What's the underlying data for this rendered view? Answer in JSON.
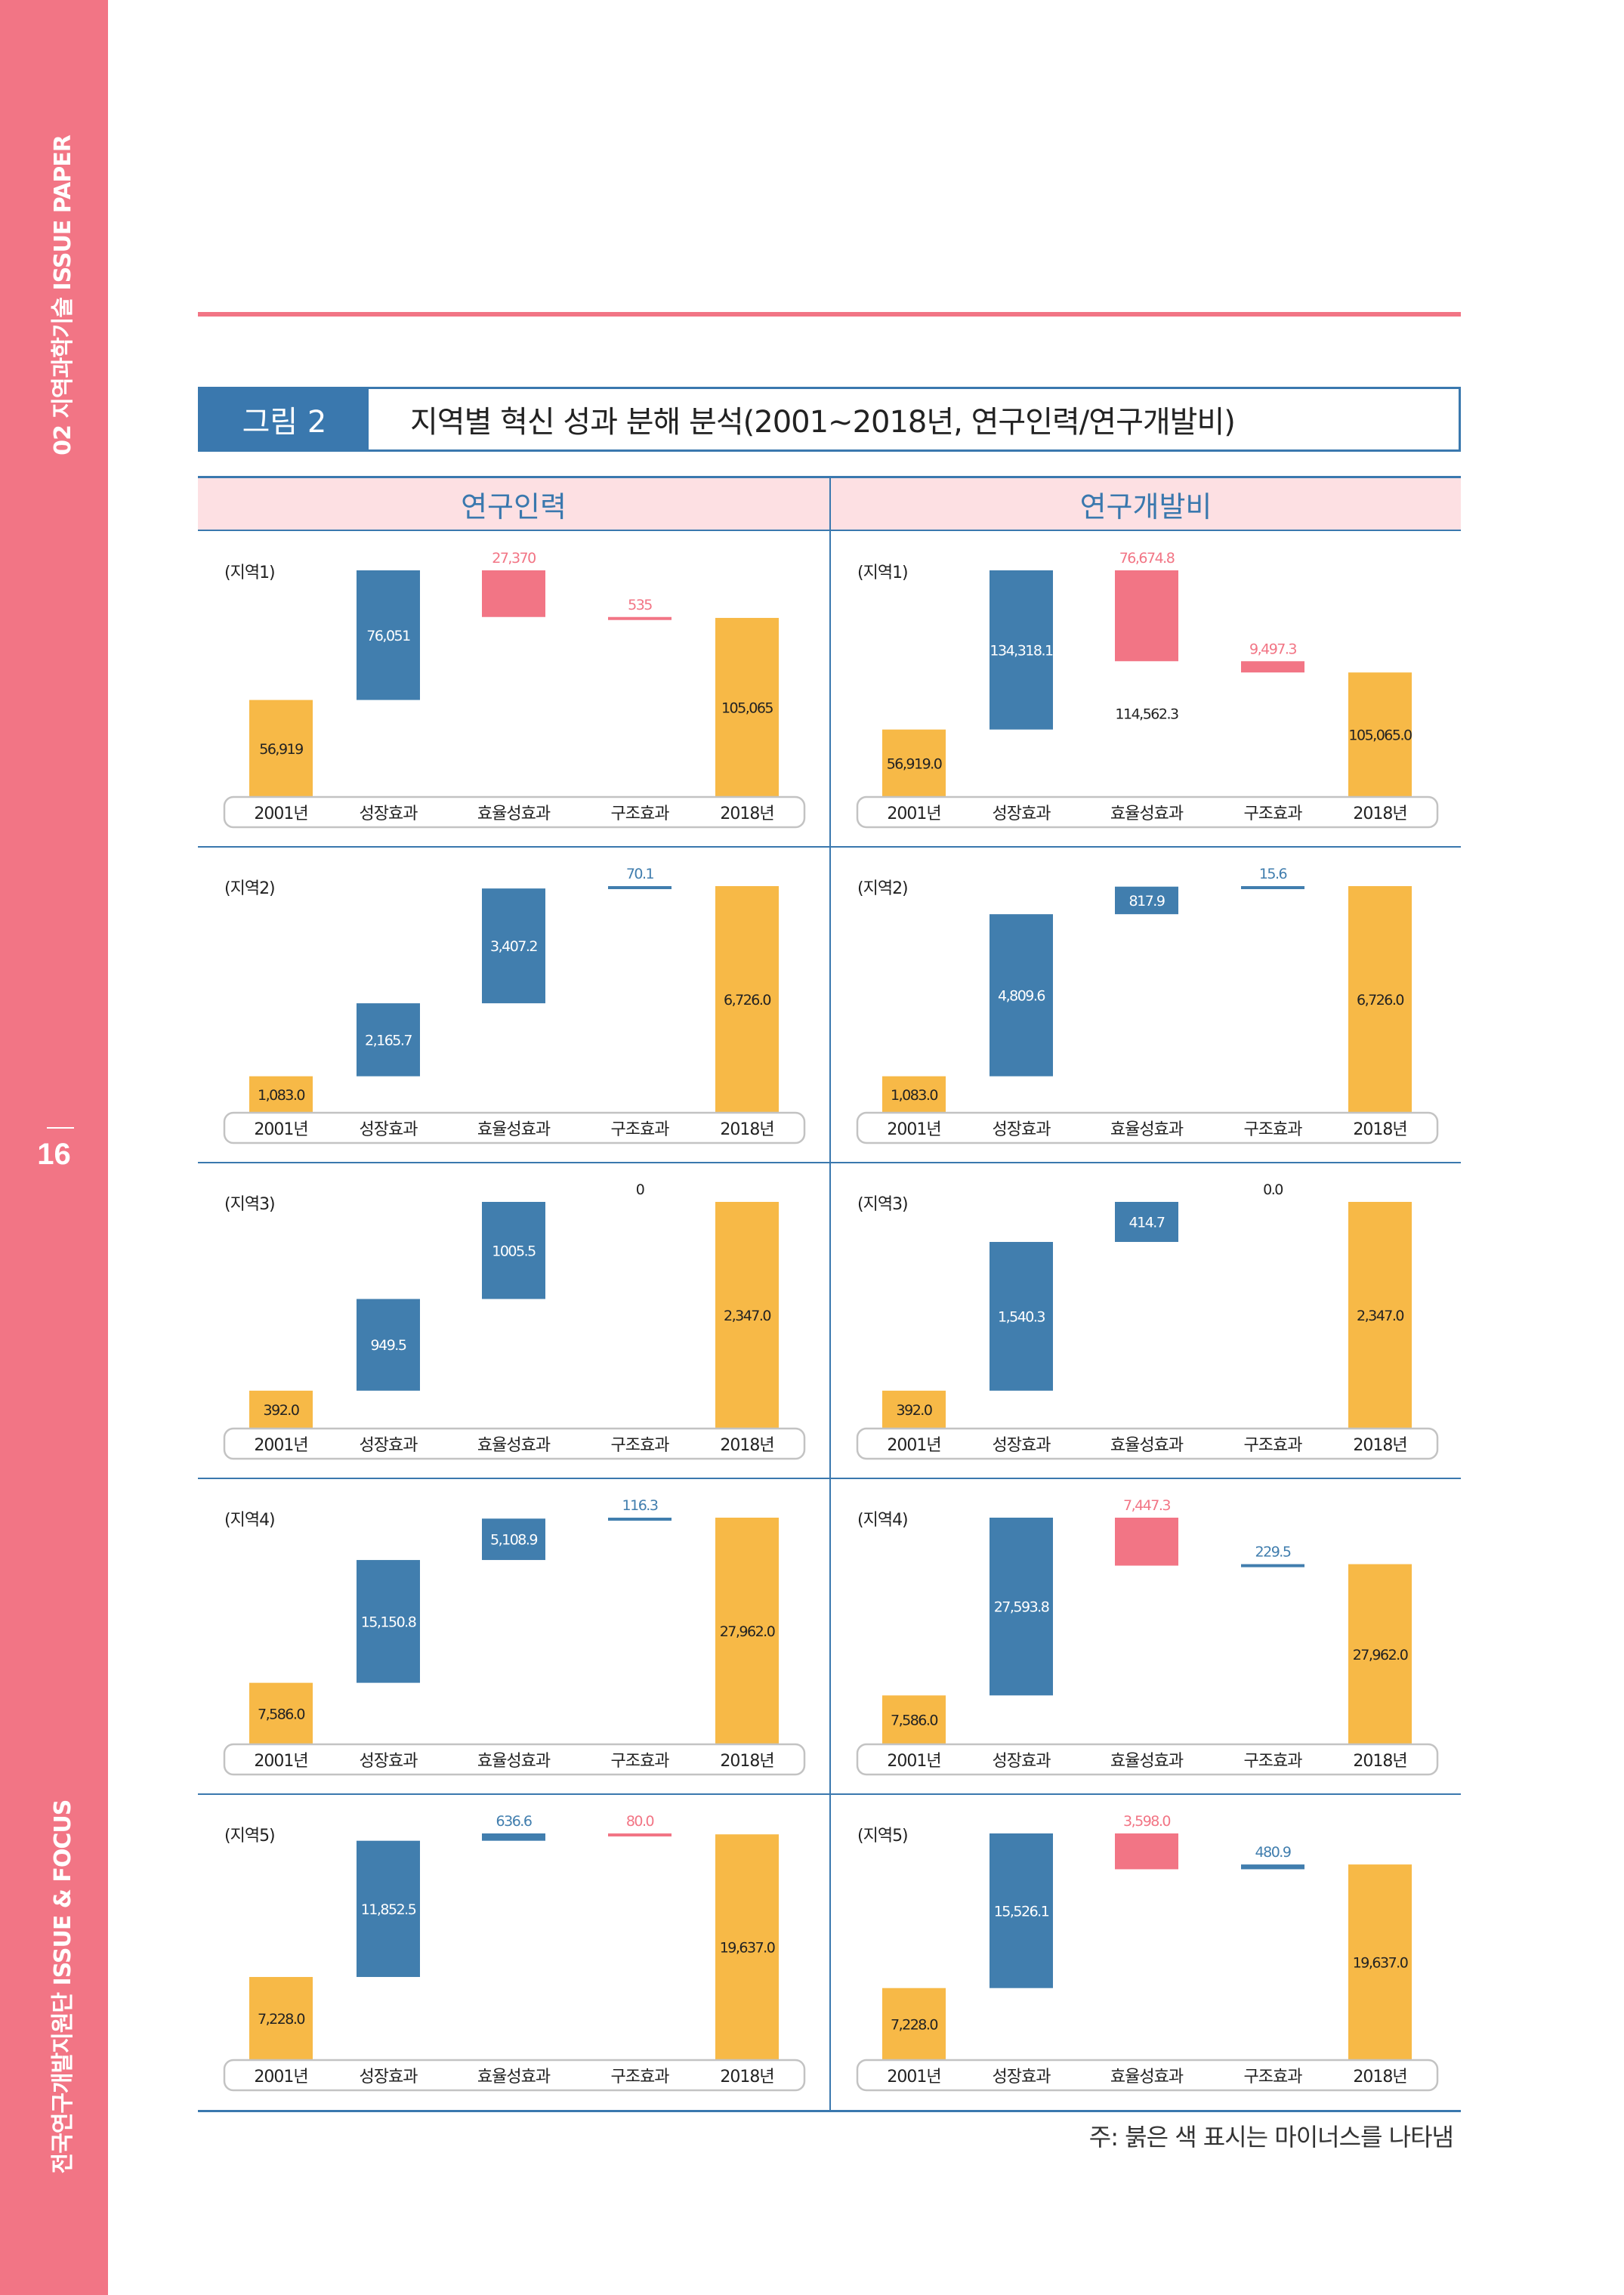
{
  "sidebar": {
    "top_text": "02 지역과학기술 ISSUE PAPER",
    "page_number": "16",
    "bottom_text": "전국연구개발지원단 ISSUE & FOCUS"
  },
  "figure": {
    "label": "그림 2",
    "title": "지역별 혁신 성과 분해 분석(2001~2018년, 연구인력/연구개발비)"
  },
  "columns": [
    "연구인력",
    "연구개발비"
  ],
  "footnote": "주: 붉은 색 표시는 마이너스를 나타냄",
  "colors": {
    "base": "#f7b947",
    "positive": "#417eae",
    "negative": "#f27585",
    "accent": "#3a78ae"
  },
  "chart_data": [
    {
      "type": "waterfall",
      "panel": "연구인력",
      "region": "(지역1)",
      "categories": [
        "2001년",
        "성장효과",
        "효율성효과",
        "구조효과",
        "2018년"
      ],
      "values": [
        56919,
        76051,
        -27370,
        -535,
        105065
      ],
      "labels": [
        "56,919",
        "76,051",
        "27,370",
        "535",
        "105,065"
      ]
    },
    {
      "type": "waterfall",
      "panel": "연구개발비",
      "region": "(지역1)",
      "categories": [
        "2001년",
        "성장효과",
        "효율성효과",
        "구조효과",
        "2018년"
      ],
      "values": [
        56919.0,
        134318.1,
        -76674.8,
        -9497.3,
        105065.0
      ],
      "labels": [
        "56,919.0",
        "134,318.1",
        "76,674.8",
        "9,497.3",
        "105,065.0"
      ],
      "subtotal_label": "114,562.3"
    },
    {
      "type": "waterfall",
      "panel": "연구인력",
      "region": "(지역2)",
      "categories": [
        "2001년",
        "성장효과",
        "효율성효과",
        "구조효과",
        "2018년"
      ],
      "values": [
        1083.0,
        2165.7,
        3407.2,
        70.1,
        6726.0
      ],
      "labels": [
        "1,083.0",
        "2,165.7",
        "3,407.2",
        "70.1",
        "6,726.0"
      ]
    },
    {
      "type": "waterfall",
      "panel": "연구개발비",
      "region": "(지역2)",
      "categories": [
        "2001년",
        "성장효과",
        "효율성효과",
        "구조효과",
        "2018년"
      ],
      "values": [
        1083.0,
        4809.6,
        817.9,
        15.6,
        6726.0
      ],
      "labels": [
        "1,083.0",
        "4,809.6",
        "817.9",
        "15.6",
        "6,726.0"
      ]
    },
    {
      "type": "waterfall",
      "panel": "연구인력",
      "region": "(지역3)",
      "categories": [
        "2001년",
        "성장효과",
        "효율성효과",
        "구조효과",
        "2018년"
      ],
      "values": [
        392.0,
        949.5,
        1005.5,
        0,
        2347.0
      ],
      "labels": [
        "392.0",
        "949.5",
        "1005.5",
        "0",
        "2,347.0"
      ]
    },
    {
      "type": "waterfall",
      "panel": "연구개발비",
      "region": "(지역3)",
      "categories": [
        "2001년",
        "성장효과",
        "효율성효과",
        "구조효과",
        "2018년"
      ],
      "values": [
        392.0,
        1540.3,
        414.7,
        0.0,
        2347.0
      ],
      "labels": [
        "392.0",
        "1,540.3",
        "414.7",
        "0.0",
        "2,347.0"
      ]
    },
    {
      "type": "waterfall",
      "panel": "연구인력",
      "region": "(지역4)",
      "categories": [
        "2001년",
        "성장효과",
        "효율성효과",
        "구조효과",
        "2018년"
      ],
      "values": [
        7586.0,
        15150.8,
        5108.9,
        116.3,
        27962.0
      ],
      "labels": [
        "7,586.0",
        "15,150.8",
        "5,108.9",
        "116.3",
        "27,962.0"
      ]
    },
    {
      "type": "waterfall",
      "panel": "연구개발비",
      "region": "(지역4)",
      "categories": [
        "2001년",
        "성장효과",
        "효율성효과",
        "구조효과",
        "2018년"
      ],
      "values": [
        7586.0,
        27593.8,
        -7447.3,
        229.5,
        27962.0
      ],
      "labels": [
        "7,586.0",
        "27,593.8",
        "7,447.3",
        "229.5",
        "27,962.0"
      ]
    },
    {
      "type": "waterfall",
      "panel": "연구인력",
      "region": "(지역5)",
      "categories": [
        "2001년",
        "성장효과",
        "효율성효과",
        "구조효과",
        "2018년"
      ],
      "values": [
        7228.0,
        11852.5,
        636.6,
        -80.0,
        19637.0
      ],
      "labels": [
        "7,228.0",
        "11,852.5",
        "636.6",
        "80.0",
        "19,637.0"
      ]
    },
    {
      "type": "waterfall",
      "panel": "연구개발비",
      "region": "(지역5)",
      "categories": [
        "2001년",
        "성장효과",
        "효율성효과",
        "구조효과",
        "2018년"
      ],
      "values": [
        7228.0,
        15526.1,
        -3598.0,
        480.9,
        19637.0
      ],
      "labels": [
        "7,228.0",
        "15,526.1",
        "3,598.0",
        "480.9",
        "19,637.0"
      ]
    }
  ]
}
